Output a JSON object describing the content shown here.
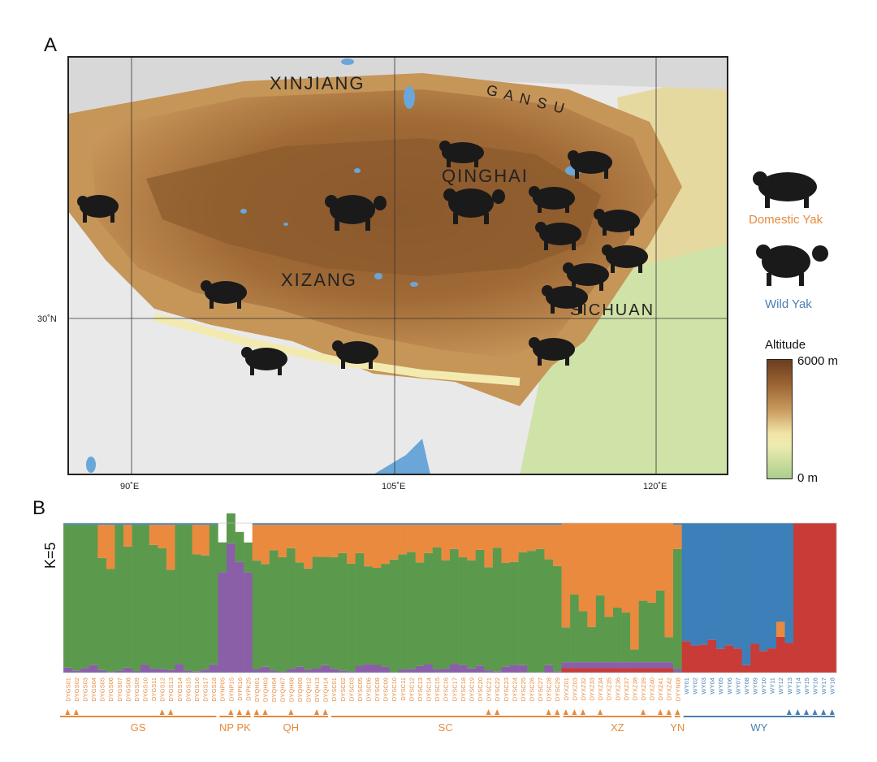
{
  "panels": {
    "a": "A",
    "b": "B"
  },
  "map": {
    "regions": [
      {
        "id": "xinjiang",
        "name": "XINJIANG"
      },
      {
        "id": "gansu",
        "name": "G A N S U"
      },
      {
        "id": "qinghai",
        "name": "QINGHAI"
      },
      {
        "id": "xizang",
        "name": "XIZANG"
      },
      {
        "id": "sichuan",
        "name": "SICHUAN"
      }
    ],
    "longitudes": [
      "90˚E",
      "105˚E",
      "120˚E"
    ],
    "latitudes": [
      "30˚N"
    ]
  },
  "legend": {
    "domestic": "Domestic Yak",
    "wild": "Wild Yak",
    "altitude_title": "Altitude",
    "altitude_max": "6000 m",
    "altitude_min": "0 m"
  },
  "colors": {
    "green": "#5b9a4d",
    "orange": "#ea8a3e",
    "purple": "#8a5fa8",
    "red": "#c93b37",
    "blue": "#3d7fb8",
    "domestic_text": "#e58a3f",
    "wild_text": "#4a7fb0"
  },
  "admixture": {
    "k_label": "K=5",
    "samples": [
      "DYGS01",
      "DYGS02",
      "DYGS03",
      "DYGS04",
      "DYGS05",
      "DYGS06",
      "DYGS07",
      "DYGS08",
      "DYGS09",
      "DYGS10",
      "DYGS11",
      "DYGS12",
      "DYGS13",
      "DYGS14",
      "DYGS15",
      "DYGS16",
      "DYGS17",
      "DYGS18",
      "DYNP05",
      "DYNP15",
      "DYPK16",
      "DYPK25",
      "DYQH01",
      "DYQH03",
      "DYQH04",
      "DYQH07",
      "DYQH08",
      "DYQH09",
      "DYQH12",
      "DYQH13",
      "DYQH14",
      "DYSC01",
      "DYSC02",
      "DYSC03",
      "DYSC05",
      "DYSC06",
      "DYSC08",
      "DYSC09",
      "DYSC10",
      "DYSC11",
      "DYSC12",
      "DYSC13",
      "DYSC14",
      "DYSC15",
      "DYSC16",
      "DYSC17",
      "DYSC18",
      "DYSC19",
      "DYSC20",
      "DYSC21",
      "DYSC22",
      "DYSC23",
      "DYSC24",
      "DYSC25",
      "DYSC26",
      "DYSC27",
      "DYSC28",
      "DYSC29",
      "DYXZ01",
      "DYXZ03",
      "DYXZ32",
      "DYXZ33",
      "DYXZ34",
      "DYXZ35",
      "DYXZ36",
      "DYXZ37",
      "DYXZ38",
      "DYXZ39",
      "DYXZ40",
      "DYXZ41",
      "DYXZ42",
      "DYYN08",
      "WY01",
      "WY02",
      "WY03",
      "WY04",
      "WY05",
      "WY06",
      "WY07",
      "WY08",
      "WY09",
      "WY10",
      "WY11",
      "WY12",
      "WY13",
      "WY14",
      "WY15",
      "WY16",
      "WY17",
      "WY18"
    ],
    "groups": [
      {
        "label": "GS",
        "start": 0,
        "end": 17
      },
      {
        "label": "NP",
        "start": 18,
        "end": 19
      },
      {
        "label": "PK",
        "start": 20,
        "end": 21
      },
      {
        "label": "QH",
        "start": 22,
        "end": 30
      },
      {
        "label": "SC",
        "start": 31,
        "end": 57
      },
      {
        "label": "XZ",
        "start": 58,
        "end": 70
      },
      {
        "label": "YN",
        "start": 71,
        "end": 71
      },
      {
        "label": "WY",
        "start": 72,
        "end": 89
      }
    ],
    "triangles": [
      0,
      1,
      11,
      12,
      19,
      20,
      21,
      22,
      23,
      26,
      29,
      30,
      49,
      50,
      56,
      57,
      58,
      59,
      60,
      62,
      67,
      69,
      70,
      71,
      84,
      85,
      86,
      87,
      88,
      89
    ]
  }
}
